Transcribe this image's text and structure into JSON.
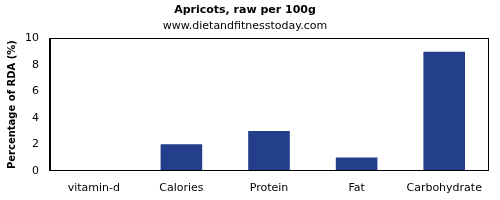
{
  "chart_data": {
    "type": "bar",
    "title": "Apricots, raw per 100g",
    "subtitle": "www.dietandfitnesstoday.com",
    "y_label": "Percentage of RDA (%)",
    "categories": [
      "vitamin-d",
      "Calories",
      "Protein",
      "Fat",
      "Carbohydrate"
    ],
    "values": [
      0,
      2,
      3,
      1,
      9
    ],
    "color": "#233e8b",
    "ylim": [
      0,
      10
    ],
    "yticks": [
      0,
      2,
      4,
      6,
      8,
      10
    ],
    "grid": false
  }
}
